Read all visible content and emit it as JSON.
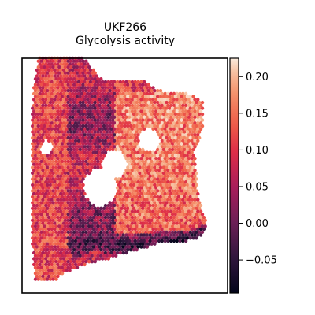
{
  "chart_data": {
    "type": "scatter",
    "title_line1": "UKF266",
    "title_line2": "Glycolysis activity",
    "colorbar": {
      "colormap": "rocket",
      "vmin": -0.095,
      "vmax": 0.225,
      "ticks": [
        0.2,
        0.15,
        0.1,
        0.05,
        0.0,
        -0.05
      ],
      "tick_labels": [
        "0.20",
        "0.15",
        "0.10",
        "0.05",
        "0.00",
        "−0.05"
      ]
    },
    "xlim": [
      0,
      100
    ],
    "ylim": [
      0,
      100
    ],
    "grid": false,
    "n_spots_approx": 3000,
    "spatial_pattern": {
      "outline_left": [
        [
          6,
          5
        ],
        [
          6,
          10
        ],
        [
          5,
          20
        ],
        [
          5,
          40
        ],
        [
          5,
          60
        ],
        [
          5,
          80
        ],
        [
          6,
          90
        ],
        [
          7,
          95
        ],
        [
          8,
          100
        ],
        [
          9,
          100
        ]
      ],
      "outline_right": [
        [
          16,
          5
        ],
        [
          20,
          8
        ],
        [
          25,
          10
        ],
        [
          30,
          12
        ],
        [
          40,
          14
        ],
        [
          55,
          18
        ],
        [
          70,
          22
        ],
        [
          80,
          22
        ],
        [
          88,
          24
        ],
        [
          90,
          30
        ],
        [
          86,
          40
        ],
        [
          85,
          50
        ],
        [
          84,
          60
        ],
        [
          88,
          70
        ],
        [
          88,
          82
        ],
        [
          80,
          85
        ],
        [
          70,
          85
        ],
        [
          60,
          90
        ],
        [
          40,
          90
        ],
        [
          30,
          100
        ]
      ],
      "cutouts": [
        [
          38,
          45,
          8
        ],
        [
          45,
          55,
          6
        ],
        [
          62,
          65,
          5
        ],
        [
          12,
          62,
          3
        ]
      ],
      "dark_stripe": [
        [
          27,
          20
        ],
        [
          33,
          23
        ],
        [
          40,
          22
        ],
        [
          47,
          20
        ],
        [
          55,
          20
        ],
        [
          62,
          20
        ],
        [
          68,
          22
        ],
        [
          75,
          22
        ],
        [
          82,
          22
        ],
        [
          88,
          24
        ]
      ],
      "region_means": {
        "left_band": 0.11,
        "central_streak": 0.05,
        "right_lobe": 0.16,
        "lower_edge": 0.02
      }
    }
  },
  "colors": {
    "axes": "#000000",
    "background": "#ffffff"
  }
}
